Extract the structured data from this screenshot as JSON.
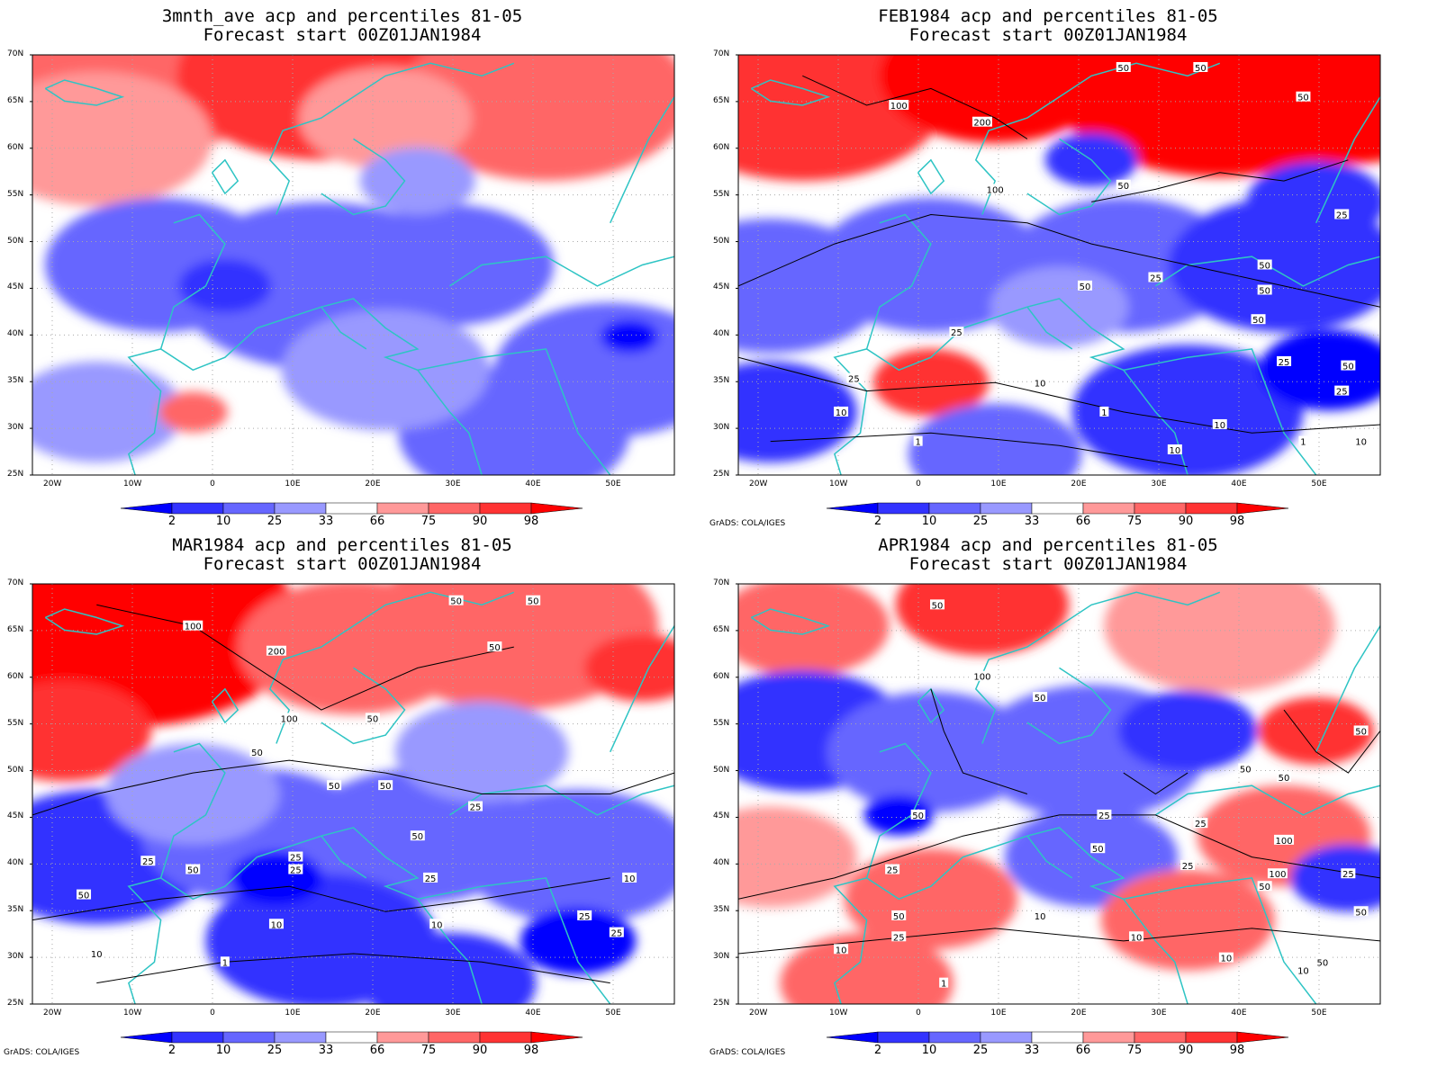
{
  "credit": "GrADS: COLA/IGES",
  "lat_labels": [
    "70N",
    "65N",
    "60N",
    "55N",
    "50N",
    "45N",
    "40N",
    "35N",
    "30N",
    "25N"
  ],
  "lon_labels": [
    "20W",
    "10W",
    "0",
    "10E",
    "20E",
    "30E",
    "40E",
    "50E"
  ],
  "colorbar": {
    "labels": [
      "2",
      "10",
      "25",
      "33",
      "66",
      "75",
      "90",
      "98"
    ],
    "colors": [
      "#0000ff",
      "#3333ff",
      "#6666ff",
      "#9999ff",
      "#ffffff",
      "#ff9999",
      "#ff6666",
      "#ff3333",
      "#ff0000"
    ]
  },
  "colors": {
    "coastline": "#2ec4c4",
    "contour": "#000000",
    "grid": "#aaaaaa"
  },
  "panels": [
    {
      "title_line1": "3mnth_ave acp and percentiles 81-05",
      "title_line2": "Forecast start 00Z01JAN1984",
      "contour_labels": [],
      "show_credit": false
    },
    {
      "title_line1": "FEB1984 acp and percentiles 81-05",
      "title_line2": "Forecast start 00Z01JAN1984",
      "contour_labels": [
        "100",
        "200",
        "50",
        "50",
        "50",
        "50",
        "100",
        "50",
        "25",
        "25",
        "50",
        "50",
        "50",
        "25",
        "25",
        "10",
        "10",
        "1",
        "1",
        "25",
        "10",
        "10",
        "1",
        "25",
        "50",
        "10"
      ],
      "show_credit": true
    },
    {
      "title_line1": "MAR1984 acp and percentiles 81-05",
      "title_line2": "Forecast start 00Z01JAN1984",
      "contour_labels": [
        "100",
        "200",
        "50",
        "50",
        "50",
        "100",
        "50",
        "50",
        "50",
        "50",
        "25",
        "25",
        "25",
        "25",
        "50",
        "25",
        "50",
        "50",
        "10",
        "10",
        "25",
        "10",
        "10",
        "1",
        "25"
      ],
      "show_credit": true
    },
    {
      "title_line1": "APR1984 acp and percentiles 81-05",
      "title_line2": "Forecast start 00Z01JAN1984",
      "contour_labels": [
        "50",
        "100",
        "50",
        "50",
        "50",
        "50",
        "50",
        "25",
        "25",
        "50",
        "25",
        "100",
        "100",
        "50",
        "10",
        "10",
        "25",
        "10",
        "1",
        "10",
        "50",
        "25",
        "50",
        "50",
        "25",
        "10"
      ],
      "show_credit": true
    }
  ]
}
